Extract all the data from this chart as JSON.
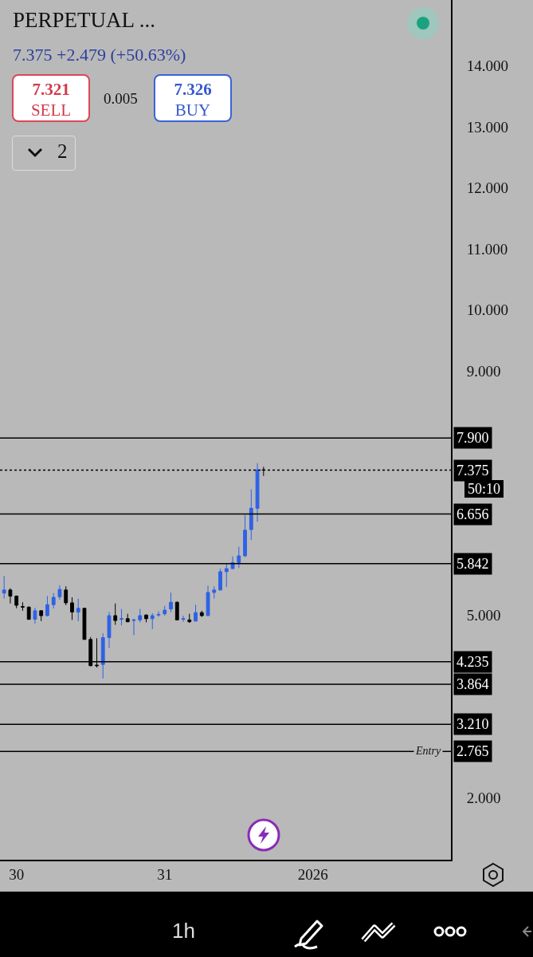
{
  "chart_data": {
    "type": "candlestick",
    "title": "PERPETUAL ...",
    "subtitle": "7.375 +2.479 (+50.63%)",
    "annotations": [
      "7.321",
      "SELL",
      "0.005",
      "7.326",
      "BUY",
      "2",
      "50:10",
      "1h",
      {
        "text": "Entry",
        "x": "2026-01-01T18:40",
        "y": 2.765
      }
    ],
    "x": [
      "2025-12-29T22:00",
      "2025-12-29T23:00",
      "2025-12-30T00:00",
      "2025-12-30T01:00",
      "2025-12-30T02:00",
      "2025-12-30T03:00",
      "2025-12-30T04:00",
      "2025-12-30T05:00",
      "2025-12-30T06:00",
      "2025-12-30T07:00",
      "2025-12-30T08:00",
      "2025-12-30T09:00",
      "2025-12-30T10:00",
      "2025-12-30T11:00",
      "2025-12-30T12:00",
      "2025-12-30T13:00",
      "2025-12-30T14:00",
      "2025-12-30T15:00",
      "2025-12-30T16:00",
      "2025-12-30T17:00",
      "2025-12-30T18:00",
      "2025-12-30T19:00",
      "2025-12-30T20:00",
      "2025-12-30T21:00",
      "2025-12-30T22:00",
      "2025-12-30T23:00",
      "2025-12-31T00:00",
      "2025-12-31T01:00",
      "2025-12-31T02:00",
      "2025-12-31T03:00",
      "2025-12-31T04:00",
      "2025-12-31T05:00",
      "2025-12-31T06:00",
      "2025-12-31T07:00",
      "2025-12-31T08:00",
      "2025-12-31T09:00",
      "2025-12-31T10:00",
      "2025-12-31T11:00",
      "2025-12-31T12:00",
      "2025-12-31T13:00",
      "2025-12-31T14:00",
      "2025-12-31T15:00",
      "2025-12-31T16:00"
    ],
    "ohlc": [
      [
        5.36,
        5.64,
        5.27,
        5.41
      ],
      [
        5.41,
        5.44,
        5.19,
        5.31
      ],
      [
        5.31,
        5.32,
        5.11,
        5.16
      ],
      [
        5.14,
        5.21,
        5.07,
        5.13
      ],
      [
        5.13,
        5.14,
        4.92,
        4.93
      ],
      [
        4.93,
        5.12,
        4.86,
        5.07
      ],
      [
        5.07,
        5.08,
        4.9,
        4.99
      ],
      [
        4.99,
        5.31,
        4.98,
        5.17
      ],
      [
        5.17,
        5.36,
        5.11,
        5.29
      ],
      [
        5.3,
        5.49,
        5.25,
        5.42
      ],
      [
        5.41,
        5.47,
        5.16,
        5.2
      ],
      [
        5.2,
        5.29,
        4.92,
        5.05
      ],
      [
        5.05,
        5.27,
        4.9,
        5.11
      ],
      [
        5.11,
        5.12,
        4.6,
        4.6
      ],
      [
        4.6,
        4.64,
        4.16,
        4.17
      ],
      [
        4.18,
        4.62,
        4.14,
        4.17
      ],
      [
        4.19,
        4.7,
        3.96,
        4.63
      ],
      [
        4.63,
        5.05,
        4.46,
        4.99
      ],
      [
        4.99,
        5.19,
        4.84,
        4.91
      ],
      [
        4.93,
        5.1,
        4.83,
        4.94
      ],
      [
        4.94,
        5.02,
        4.88,
        4.89
      ],
      [
        4.91,
        4.94,
        4.67,
        4.92
      ],
      [
        4.92,
        5.1,
        4.88,
        4.99
      ],
      [
        5,
        5.01,
        4.88,
        4.94
      ],
      [
        4.94,
        5.03,
        4.77,
        4.99
      ],
      [
        5,
        5.06,
        4.97,
        5.01
      ],
      [
        5.02,
        5.15,
        4.99,
        5.08
      ],
      [
        5.1,
        5.37,
        5.05,
        5.21
      ],
      [
        5.21,
        5.22,
        4.92,
        4.92
      ],
      [
        4.93,
        4.99,
        4.89,
        4.94
      ],
      [
        4.92,
        5.02,
        4.87,
        4.89
      ],
      [
        4.9,
        5.17,
        4.9,
        5.04
      ],
      [
        5.04,
        5.07,
        4.97,
        4.99
      ],
      [
        4.99,
        5.48,
        4.99,
        5.37
      ],
      [
        5.37,
        5.47,
        5.27,
        5.41
      ],
      [
        5.41,
        5.76,
        5.4,
        5.71
      ],
      [
        5.71,
        5.84,
        5.46,
        5.76
      ],
      [
        5.76,
        5.96,
        5.76,
        5.86
      ],
      [
        5.86,
        6.12,
        5.77,
        5.97
      ],
      [
        5.97,
        6.64,
        5.95,
        6.39
      ],
      [
        6.4,
        7.06,
        6.23,
        6.75
      ],
      [
        6.75,
        7.49,
        6.53,
        7.38
      ],
      [
        7.38,
        7.43,
        7.28,
        7.375
      ]
    ],
    "colors": [
      "#2e62e6",
      "#000000",
      "#000000",
      "#000000",
      "#000000",
      "#2e62e6",
      "#000000",
      "#2e62e6",
      "#2e62e6",
      "#2e62e6",
      "#000000",
      "#000000",
      "#2e62e6",
      "#000000",
      "#000000",
      "#000000",
      "#2e62e6",
      "#2e62e6",
      "#000000",
      "#2e62e6",
      "#000000",
      "#2e62e6",
      "#2e62e6",
      "#000000",
      "#2e62e6",
      "#2e62e6",
      "#2e62e6",
      "#2e62e6",
      "#000000",
      "#2e62e6",
      "#000000",
      "#2e62e6",
      "#000000",
      "#2e62e6",
      "#2e62e6",
      "#2e62e6",
      "#2e62e6",
      "#2e62e6",
      "#2e62e6",
      "#2e62e6",
      "#2e62e6",
      "#2e62e6",
      "#000000"
    ],
    "xlim": [
      "2025-12-29T21:20",
      "2026-01-01T22:20"
    ],
    "xticks": [
      {
        "value": "2025-12-30",
        "label": "30"
      },
      {
        "value": "2025-12-31",
        "label": "31"
      },
      {
        "value": "2026-01-01",
        "label": "2026"
      }
    ],
    "ylim": [
      0.99,
      15.08
    ],
    "yticks": [
      {
        "value": 2,
        "label": "2.000"
      },
      {
        "value": 5,
        "label": "5.000"
      },
      {
        "value": 9,
        "label": "9.000"
      },
      {
        "value": 10,
        "label": "10.000"
      },
      {
        "value": 11,
        "label": "11.000"
      },
      {
        "value": 12,
        "label": "12.000"
      },
      {
        "value": 13,
        "label": "13.000"
      },
      {
        "value": 14,
        "label": "14.000"
      }
    ],
    "ref_lines": [
      {
        "axis": "y",
        "value": 7.9,
        "line_style": "solid",
        "color": "#000000",
        "label": "7.900"
      },
      {
        "axis": "y",
        "value": 7.375,
        "line_style": "dotted",
        "color": "#000000",
        "label": "7.375"
      },
      {
        "axis": "y",
        "value": 6.656,
        "line_style": "solid",
        "color": "#000000",
        "label": "6.656"
      },
      {
        "axis": "y",
        "value": 5.842,
        "line_style": "solid",
        "color": "#000000",
        "label": "5.842"
      },
      {
        "axis": "y",
        "value": 4.235,
        "line_style": "solid",
        "color": "#000000",
        "label": "4.235"
      },
      {
        "axis": "y",
        "value": 3.864,
        "line_style": "solid",
        "color": "#000000",
        "label": "3.864"
      },
      {
        "axis": "y",
        "value": 3.21,
        "line_style": "solid",
        "color": "#000000",
        "label": "3.210"
      },
      {
        "axis": "y",
        "value": 2.765,
        "line_style": "solid",
        "color": "#000000",
        "label": "2.765"
      }
    ]
  }
}
